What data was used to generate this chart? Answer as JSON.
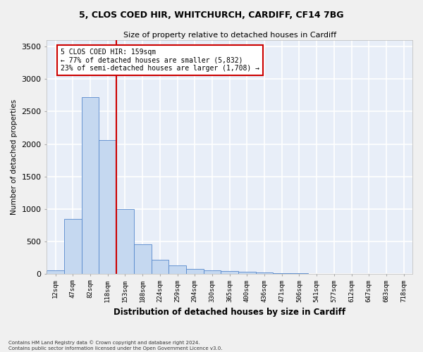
{
  "title_line1": "5, CLOS COED HIR, WHITCHURCH, CARDIFF, CF14 7BG",
  "title_line2": "Size of property relative to detached houses in Cardiff",
  "xlabel": "Distribution of detached houses by size in Cardiff",
  "ylabel": "Number of detached properties",
  "categories": [
    "12sqm",
    "47sqm",
    "82sqm",
    "118sqm",
    "153sqm",
    "188sqm",
    "224sqm",
    "259sqm",
    "294sqm",
    "330sqm",
    "365sqm",
    "400sqm",
    "436sqm",
    "471sqm",
    "506sqm",
    "541sqm",
    "577sqm",
    "612sqm",
    "647sqm",
    "683sqm",
    "718sqm"
  ],
  "values": [
    55,
    840,
    2720,
    2060,
    1000,
    450,
    210,
    130,
    70,
    50,
    40,
    30,
    20,
    10,
    5,
    3,
    2,
    1,
    1,
    0,
    0
  ],
  "bar_color": "#c5d8f0",
  "bar_edge_color": "#5588cc",
  "vline_color": "#cc0000",
  "vline_x": 3.5,
  "annotation_text": "5 CLOS COED HIR: 159sqm\n← 77% of detached houses are smaller (5,832)\n23% of semi-detached houses are larger (1,708) →",
  "annotation_box_color": "#ffffff",
  "annotation_box_edge_color": "#cc0000",
  "ylim": [
    0,
    3600
  ],
  "yticks": [
    0,
    500,
    1000,
    1500,
    2000,
    2500,
    3000,
    3500
  ],
  "background_color": "#e8eef8",
  "grid_color": "#ffffff",
  "fig_background": "#f0f0f0",
  "footer_line1": "Contains HM Land Registry data © Crown copyright and database right 2024.",
  "footer_line2": "Contains public sector information licensed under the Open Government Licence v3.0."
}
